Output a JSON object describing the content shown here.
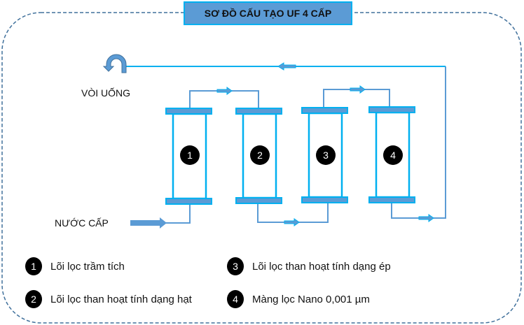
{
  "title": "SƠ ĐỒ CẤU TẠO UF 4 CẤP",
  "labels": {
    "outlet": "VÒI UỐNG",
    "inlet": "NƯỚC CẤP"
  },
  "filters": [
    "1",
    "2",
    "3",
    "4"
  ],
  "legend": [
    {
      "num": "1",
      "text": "Lõi lọc trầm tích"
    },
    {
      "num": "2",
      "text": "Lõi lọc than hoạt tính dạng hạt"
    },
    {
      "num": "3",
      "text": "Lõi lọc than hoạt tính dạng ép"
    },
    {
      "num": "4",
      "text": "Màng lọc Nano 0,001 µm"
    }
  ],
  "colors": {
    "pipe": "#5b9bd5",
    "outline": "#00b0f0",
    "border": "#41719c",
    "badge": "#000000"
  },
  "icons": {
    "outlet": "u-turn-arrow-icon",
    "flow": "arrow-icon"
  }
}
